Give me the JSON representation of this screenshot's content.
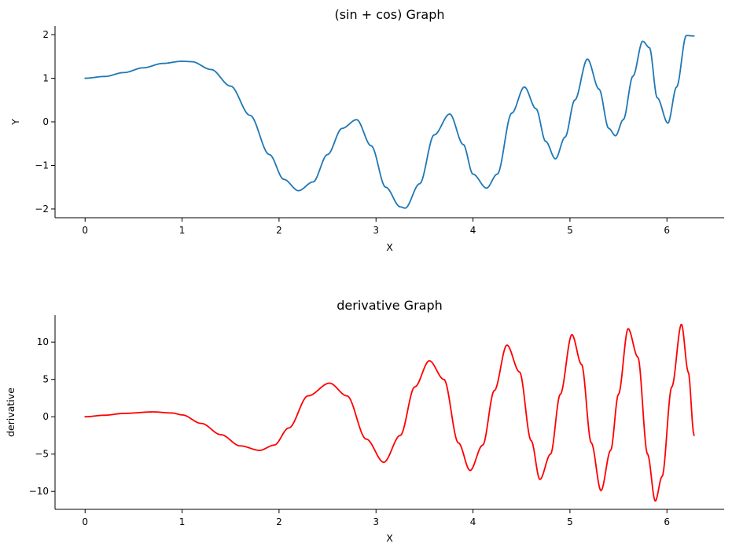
{
  "chart_data": [
    {
      "type": "line",
      "title": "(sin + cos) Graph",
      "xlabel": "X",
      "ylabel": "Y",
      "xlim": [
        -0.31,
        6.59
      ],
      "ylim": [
        -2.2,
        2.2
      ],
      "xticks": [
        0,
        1,
        2,
        3,
        4,
        5,
        6
      ],
      "xtick_labels": [
        "0",
        "1",
        "2",
        "3",
        "4",
        "5",
        "6"
      ],
      "yticks": [
        -2,
        -1,
        0,
        1,
        2
      ],
      "ytick_labels": [
        "−2",
        "−1",
        "0",
        "1",
        "2"
      ],
      "grid": false,
      "color": "#1f77b4",
      "series": [
        {
          "x": [
            0,
            0.2,
            0.4,
            0.6,
            0.8,
            1.0,
            1.1,
            1.3,
            1.5,
            1.7,
            1.9,
            2.05,
            2.2,
            2.35,
            2.5,
            2.65,
            2.8,
            2.95,
            3.1,
            3.25,
            3.3,
            3.45,
            3.6,
            3.76,
            3.9,
            4.0,
            4.14,
            4.25,
            4.4,
            4.53,
            4.65,
            4.75,
            4.85,
            4.95,
            5.05,
            5.18,
            5.3,
            5.4,
            5.47,
            5.55,
            5.65,
            5.75,
            5.82,
            5.9,
            6.01,
            6.1,
            6.2,
            6.28
          ],
          "y": [
            1.0,
            1.04,
            1.13,
            1.24,
            1.34,
            1.39,
            1.38,
            1.2,
            0.82,
            0.15,
            -0.75,
            -1.32,
            -1.58,
            -1.38,
            -0.75,
            -0.15,
            0.05,
            -0.55,
            -1.5,
            -1.95,
            -1.98,
            -1.42,
            -0.3,
            0.18,
            -0.52,
            -1.2,
            -1.52,
            -1.2,
            0.2,
            0.8,
            0.3,
            -0.45,
            -0.85,
            -0.35,
            0.5,
            1.44,
            0.75,
            -0.15,
            -0.32,
            0.05,
            1.05,
            1.85,
            1.7,
            0.55,
            -0.03,
            0.8,
            1.98,
            1.97
          ]
        }
      ]
    },
    {
      "type": "line",
      "title": "derivative Graph",
      "xlabel": "X",
      "ylabel": "derivative",
      "xlim": [
        -0.31,
        6.59
      ],
      "ylim": [
        -12.4,
        13.6
      ],
      "xticks": [
        0,
        1,
        2,
        3,
        4,
        5,
        6
      ],
      "xtick_labels": [
        "0",
        "1",
        "2",
        "3",
        "4",
        "5",
        "6"
      ],
      "yticks": [
        -10,
        -5,
        0,
        5,
        10
      ],
      "ytick_labels": [
        "−10",
        "−5",
        "0",
        "5",
        "10"
      ],
      "grid": false,
      "color": "#ff0000",
      "series": [
        {
          "x": [
            0,
            0.2,
            0.4,
            0.7,
            0.9,
            1.0,
            1.2,
            1.4,
            1.6,
            1.8,
            1.95,
            2.1,
            2.3,
            2.52,
            2.7,
            2.9,
            3.08,
            3.25,
            3.4,
            3.55,
            3.7,
            3.85,
            3.97,
            4.1,
            4.22,
            4.35,
            4.48,
            4.6,
            4.69,
            4.8,
            4.9,
            5.02,
            5.12,
            5.22,
            5.32,
            5.42,
            5.5,
            5.6,
            5.7,
            5.8,
            5.88,
            5.95,
            6.05,
            6.15,
            6.22,
            6.28
          ],
          "y": [
            0,
            0.2,
            0.45,
            0.65,
            0.5,
            0.25,
            -0.9,
            -2.4,
            -3.9,
            -4.5,
            -3.8,
            -1.5,
            2.8,
            4.5,
            2.8,
            -3.0,
            -6.1,
            -2.5,
            4.0,
            7.5,
            5.0,
            -3.5,
            -7.2,
            -3.8,
            3.5,
            9.6,
            6.0,
            -3.2,
            -8.4,
            -5.0,
            3.0,
            11.0,
            7.0,
            -3.5,
            -9.9,
            -4.5,
            3.0,
            11.8,
            8.0,
            -5.0,
            -11.3,
            -8.0,
            4.0,
            12.4,
            6.0,
            -2.5
          ]
        }
      ]
    }
  ]
}
